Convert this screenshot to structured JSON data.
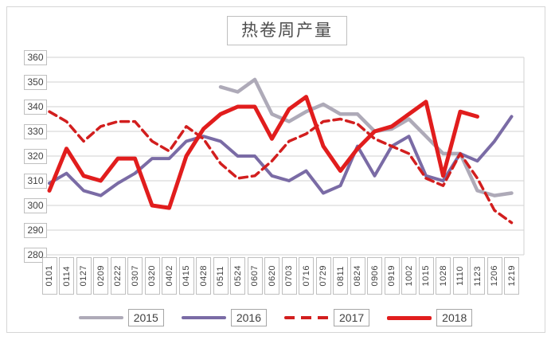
{
  "chart_data": {
    "type": "line",
    "title": "热卷周产量",
    "legend_position": "bottom",
    "grid": true,
    "categories": [
      "0101",
      "0114",
      "0127",
      "0209",
      "0222",
      "0307",
      "0320",
      "0402",
      "0415",
      "0428",
      "0511",
      "0524",
      "0607",
      "0620",
      "0703",
      "0716",
      "0729",
      "0811",
      "0824",
      "0906",
      "0919",
      "1002",
      "1015",
      "1028",
      "1110",
      "1123",
      "1206",
      "1219"
    ],
    "y_axis": {
      "min": 280,
      "max": 360,
      "step": 10,
      "tick_labels": [
        "360",
        "350",
        "340",
        "330",
        "320",
        "310",
        "300",
        "290",
        "280"
      ]
    },
    "series": [
      {
        "name": "2015",
        "color": "#aeaab8",
        "style": "solid",
        "width": 4.5,
        "values": [
          null,
          null,
          null,
          null,
          null,
          null,
          null,
          null,
          null,
          null,
          348,
          346,
          351,
          337,
          334,
          338,
          341,
          337,
          337,
          330,
          331,
          335,
          328,
          321,
          321,
          306,
          304,
          305
        ]
      },
      {
        "name": "2016",
        "color": "#7a6ba5",
        "style": "solid",
        "width": 4,
        "values": [
          309,
          313,
          306,
          304,
          309,
          313,
          319,
          319,
          326,
          328,
          326,
          320,
          320,
          312,
          310,
          314,
          305,
          308,
          324,
          312,
          324,
          328,
          312,
          310,
          321,
          318,
          326,
          336
        ]
      },
      {
        "name": "2017",
        "color": "#d21e1e",
        "style": "dashed",
        "width": 3.5,
        "values": [
          338,
          334,
          326,
          332,
          334,
          334,
          326,
          322,
          332,
          327,
          317,
          311,
          312,
          318,
          326,
          329,
          334,
          335,
          333,
          327,
          324,
          321,
          311,
          308,
          321,
          311,
          298,
          293
        ]
      },
      {
        "name": "2018",
        "color": "#e11d1d",
        "style": "solid",
        "width": 5,
        "values": [
          306,
          323,
          312,
          310,
          319,
          319,
          300,
          299,
          320,
          331,
          337,
          340,
          340,
          327,
          339,
          344,
          324,
          314,
          323,
          330,
          332,
          337,
          342,
          312,
          338,
          336,
          null,
          null
        ]
      }
    ]
  }
}
